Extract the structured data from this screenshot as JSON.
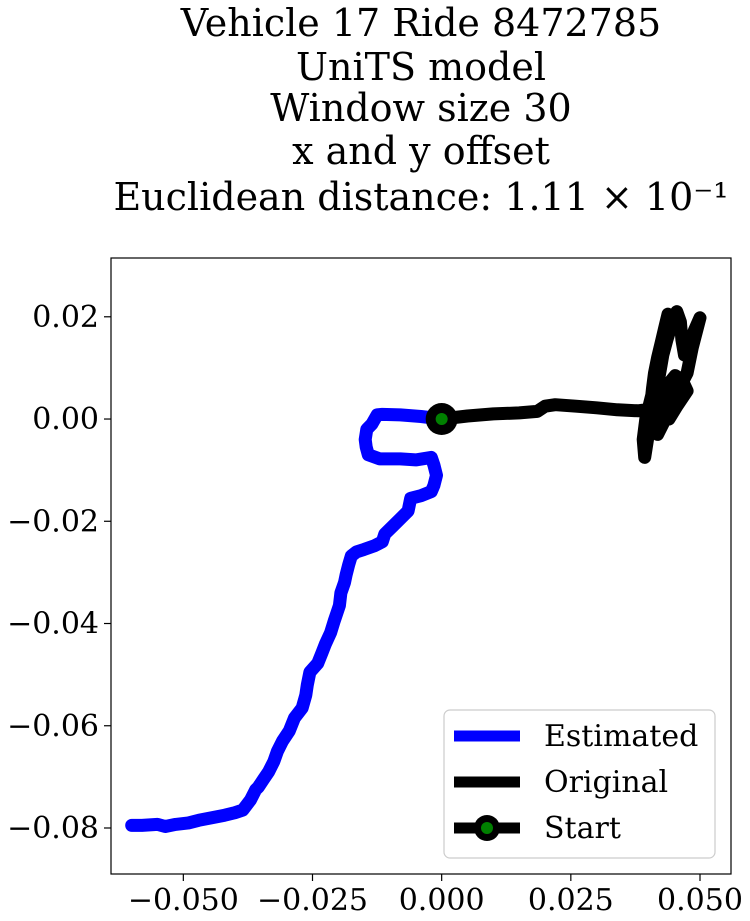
{
  "chart_data": {
    "type": "line",
    "title_lines": [
      "Vehicle 17 Ride 8472785",
      "UniTS model",
      "Window size 30",
      "x and y offset",
      "Euclidean distance: 1.11 × 10⁻¹"
    ],
    "xlabel": "",
    "ylabel": "",
    "xlim": [
      -0.064,
      0.056
    ],
    "ylim": [
      -0.089,
      0.0315
    ],
    "x_ticks": [
      -0.05,
      -0.025,
      0.0,
      0.025,
      0.05
    ],
    "x_tick_labels": [
      "−0.050",
      "−0.025",
      "0.000",
      "0.025",
      "0.050"
    ],
    "y_ticks": [
      0.02,
      0.0,
      -0.02,
      -0.04,
      -0.06,
      -0.08
    ],
    "y_tick_labels": [
      "0.02",
      "0.00",
      "−0.02",
      "−0.04",
      "−0.06",
      "−0.08"
    ],
    "grid": false,
    "legend_position": "lower-right",
    "series": [
      {
        "name": "Estimated",
        "color": "#0000ff",
        "points": [
          [
            0.0,
            0.0
          ],
          [
            -0.004,
            0.0005
          ],
          [
            -0.008,
            0.0008
          ],
          [
            -0.0115,
            0.0009
          ],
          [
            -0.0125,
            0.0008
          ],
          [
            -0.0135,
            -0.001
          ],
          [
            -0.0145,
            -0.002
          ],
          [
            -0.0148,
            -0.004
          ],
          [
            -0.0146,
            -0.0055
          ],
          [
            -0.0142,
            -0.007
          ],
          [
            -0.012,
            -0.0078
          ],
          [
            -0.008,
            -0.0078
          ],
          [
            -0.005,
            -0.008
          ],
          [
            -0.002,
            -0.0075
          ],
          [
            -0.0015,
            -0.009
          ],
          [
            -0.001,
            -0.011
          ],
          [
            -0.0015,
            -0.013
          ],
          [
            -0.002,
            -0.0142
          ],
          [
            -0.004,
            -0.015
          ],
          [
            -0.006,
            -0.0155
          ],
          [
            -0.0065,
            -0.018
          ],
          [
            -0.008,
            -0.0195
          ],
          [
            -0.0095,
            -0.021
          ],
          [
            -0.011,
            -0.0225
          ],
          [
            -0.0115,
            -0.024
          ],
          [
            -0.013,
            -0.0248
          ],
          [
            -0.015,
            -0.0255
          ],
          [
            -0.0165,
            -0.026
          ],
          [
            -0.0175,
            -0.0268
          ],
          [
            -0.018,
            -0.0285
          ],
          [
            -0.0185,
            -0.0305
          ],
          [
            -0.0188,
            -0.032
          ],
          [
            -0.0195,
            -0.034
          ],
          [
            -0.0198,
            -0.0365
          ],
          [
            -0.0203,
            -0.038
          ],
          [
            -0.0208,
            -0.0395
          ],
          [
            -0.0215,
            -0.0418
          ],
          [
            -0.0225,
            -0.044
          ],
          [
            -0.0232,
            -0.0458
          ],
          [
            -0.024,
            -0.0478
          ],
          [
            -0.0255,
            -0.0495
          ],
          [
            -0.026,
            -0.052
          ],
          [
            -0.0263,
            -0.054
          ],
          [
            -0.027,
            -0.0565
          ],
          [
            -0.0285,
            -0.0585
          ],
          [
            -0.0295,
            -0.061
          ],
          [
            -0.0308,
            -0.063
          ],
          [
            -0.0318,
            -0.065
          ],
          [
            -0.0325,
            -0.067
          ],
          [
            -0.0335,
            -0.069
          ],
          [
            -0.0345,
            -0.0705
          ],
          [
            -0.0355,
            -0.072
          ],
          [
            -0.036,
            -0.0725
          ],
          [
            -0.037,
            -0.0745
          ],
          [
            -0.0385,
            -0.0765
          ],
          [
            -0.04,
            -0.077
          ],
          [
            -0.042,
            -0.0775
          ],
          [
            -0.0445,
            -0.078
          ],
          [
            -0.047,
            -0.0785
          ],
          [
            -0.049,
            -0.079
          ],
          [
            -0.0515,
            -0.0793
          ],
          [
            -0.0535,
            -0.0797
          ],
          [
            -0.055,
            -0.0793
          ],
          [
            -0.0565,
            -0.0794
          ],
          [
            -0.058,
            -0.0795
          ],
          [
            -0.06,
            -0.0795
          ]
        ]
      },
      {
        "name": "Original",
        "color": "#000000",
        "points": [
          [
            0.0,
            0.0
          ],
          [
            0.005,
            0.0006
          ],
          [
            0.01,
            0.001
          ],
          [
            0.015,
            0.0012
          ],
          [
            0.0185,
            0.0015
          ],
          [
            0.02,
            0.0025
          ],
          [
            0.022,
            0.0028
          ],
          [
            0.026,
            0.0025
          ],
          [
            0.03,
            0.0022
          ],
          [
            0.034,
            0.0018
          ],
          [
            0.038,
            0.0016
          ],
          [
            0.0395,
            0.0018
          ],
          [
            0.04,
            0.0005
          ],
          [
            0.0405,
            0.003
          ],
          [
            0.0408,
            0.006
          ],
          [
            0.0412,
            0.009
          ],
          [
            0.0418,
            0.012
          ],
          [
            0.0425,
            0.015
          ],
          [
            0.0432,
            0.018
          ],
          [
            0.0438,
            0.0205
          ],
          [
            0.0435,
            0.016
          ],
          [
            0.0425,
            0.012
          ],
          [
            0.0415,
            0.008
          ],
          [
            0.0405,
            0.004
          ],
          [
            0.0395,
            0.0
          ],
          [
            0.039,
            -0.004
          ],
          [
            0.0393,
            -0.0075
          ],
          [
            0.04,
            -0.003
          ],
          [
            0.0408,
            0.001
          ],
          [
            0.0415,
            0.005
          ],
          [
            0.0422,
            0.009
          ],
          [
            0.0428,
            0.0125
          ],
          [
            0.0436,
            0.0155
          ],
          [
            0.0445,
            0.0185
          ],
          [
            0.0455,
            0.021
          ],
          [
            0.0462,
            0.019
          ],
          [
            0.0465,
            0.0155
          ],
          [
            0.047,
            0.0125
          ],
          [
            0.048,
            0.015
          ],
          [
            0.049,
            0.0175
          ],
          [
            0.05,
            0.0198
          ],
          [
            0.0485,
            0.014
          ],
          [
            0.0475,
            0.009
          ],
          [
            0.0462,
            0.0065
          ],
          [
            0.0448,
            0.004
          ],
          [
            0.0438,
            0.0015
          ],
          [
            0.0428,
            -0.001
          ],
          [
            0.0418,
            -0.003
          ],
          [
            0.0425,
            0.002
          ],
          [
            0.0436,
            0.0065
          ],
          [
            0.0452,
            0.0085
          ],
          [
            0.0466,
            0.0075
          ],
          [
            0.0475,
            0.0055
          ],
          [
            0.0455,
            0.0025
          ],
          [
            0.044,
            0.0
          ]
        ]
      }
    ],
    "start_point": {
      "name": "Start",
      "x": 0.0,
      "y": 0.0,
      "marker_face_color": "#008000",
      "marker_edge_color": "#000000"
    }
  }
}
